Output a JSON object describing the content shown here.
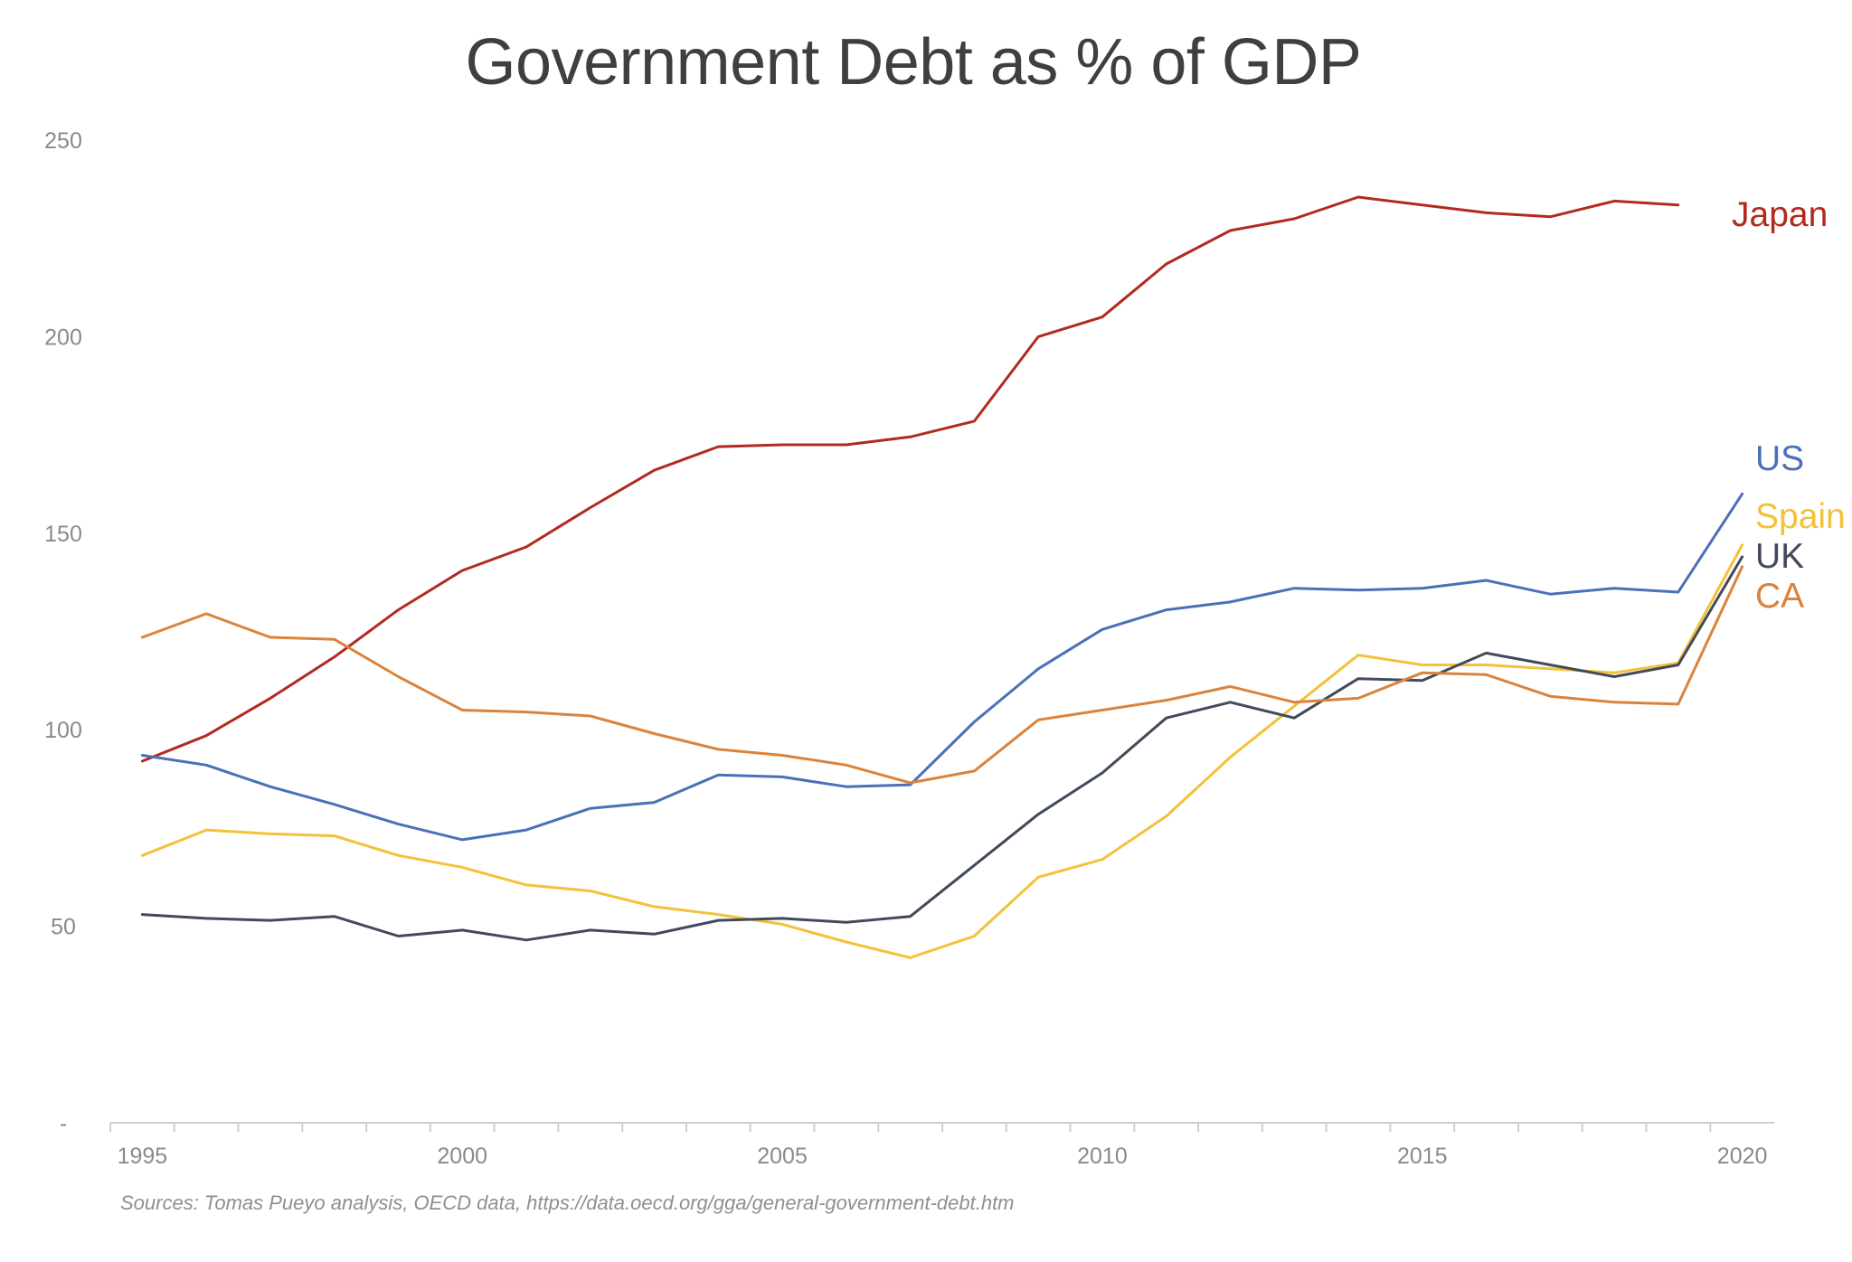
{
  "chart_data": {
    "type": "line",
    "title": "Government Debt as % of GDP",
    "xlabel": "",
    "ylabel": "",
    "x": [
      1995,
      1996,
      1997,
      1998,
      1999,
      2000,
      2001,
      2002,
      2003,
      2004,
      2005,
      2006,
      2007,
      2008,
      2009,
      2010,
      2011,
      2012,
      2013,
      2014,
      2015,
      2016,
      2017,
      2018,
      2019,
      2020
    ],
    "xlim": [
      1994.5,
      2020.5
    ],
    "ylim": [
      0,
      250
    ],
    "x_ticks": [
      "1995",
      "2000",
      "2005",
      "2010",
      "2015",
      "2020"
    ],
    "y_ticks": [
      "-",
      "50",
      "100",
      "150",
      "200",
      "250"
    ],
    "grid": false,
    "legend": "inline labels at right end of lines",
    "series": [
      {
        "name": "Japan",
        "color": "#b22a1f",
        "values": [
          92,
          98.5,
          108,
          118.5,
          130.5,
          140.5,
          146.5,
          156.5,
          166,
          172,
          172.5,
          172.5,
          174.5,
          178.5,
          200,
          205,
          218.5,
          227,
          230,
          235.5,
          233.5,
          231.5,
          230.5,
          234.5,
          233.5,
          null
        ]
      },
      {
        "name": "US",
        "color": "#4a70b8",
        "values": [
          93.5,
          91,
          85.5,
          81,
          76,
          72,
          74.5,
          80,
          81.5,
          88.5,
          88,
          85.5,
          86,
          102,
          115.5,
          125.5,
          130.5,
          132.5,
          136,
          135.5,
          136,
          138,
          134.5,
          136,
          135,
          160
        ]
      },
      {
        "name": "Spain",
        "color": "#f3c13a",
        "values": [
          68,
          74.5,
          73.5,
          73,
          68,
          65,
          60.5,
          59,
          55,
          53,
          50.5,
          46,
          42,
          47.5,
          62.5,
          67,
          78,
          93,
          106,
          119,
          116.5,
          116.5,
          115.5,
          114.5,
          117,
          147
        ]
      },
      {
        "name": "UK",
        "color": "#414a5b",
        "values": [
          53,
          52,
          51.5,
          52.5,
          47.5,
          49,
          46.5,
          49,
          48,
          51.5,
          52,
          51,
          52.5,
          65.5,
          78.5,
          89,
          103,
          107,
          103,
          113,
          112.5,
          119.5,
          116.5,
          113.5,
          116.5,
          144
        ]
      },
      {
        "name": "CA",
        "color": "#d9833c",
        "values": [
          123.5,
          129.5,
          123.5,
          123,
          113.5,
          105,
          104.5,
          103.5,
          99,
          95,
          93.5,
          91,
          86.5,
          89.5,
          102.5,
          105,
          107.5,
          111,
          107,
          108,
          114.5,
          114,
          108.5,
          107,
          106.5,
          141.5
        ]
      }
    ],
    "source": "Sources: Tomas Pueyo analysis, OECD data, https://data.oecd.org/gga/general-government-debt.htm"
  }
}
